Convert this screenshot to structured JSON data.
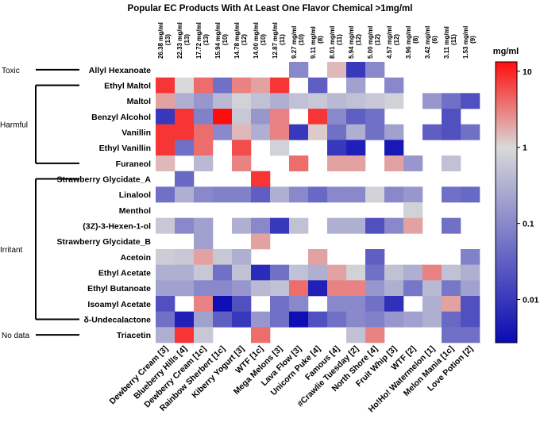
{
  "chart_data": {
    "type": "heatmap",
    "title": "Popular EC Products With At Least One Flavor Chemical >1mg/ml",
    "colorbar_title": "mg/ml",
    "column_totals": [
      [
        "26.38 mg/ml",
        "(13)"
      ],
      [
        "22.33 mg/ml",
        "(13)"
      ],
      [
        "17.72 mg/ml",
        "(13)"
      ],
      [
        "15.94 mg/ml",
        "(10)"
      ],
      [
        "14.78 mg/ml",
        "(12)"
      ],
      [
        "14.00 mg/ml",
        "(10)"
      ],
      [
        "12.87 mg/ml",
        "(11)"
      ],
      [
        "9.27 mg/ml",
        "(10)"
      ],
      [
        "9.11 mg/ml",
        "(8)"
      ],
      [
        "8.01 mg/ml",
        "(11)"
      ],
      [
        "5.94 mg/ml",
        "(12)"
      ],
      [
        "5.00 mg/ml",
        "(12)"
      ],
      [
        "4.57 mg/ml",
        "(12)"
      ],
      [
        "3.96 mg/ml",
        "(8)"
      ],
      [
        "3.42 mg/ml",
        "(6)"
      ],
      [
        "3.11 mg/ml",
        "(11)"
      ],
      [
        "1.53 mg/ml",
        "(9)"
      ]
    ],
    "categories": [
      "Dewberry Cream [3]",
      "Blueberry Hills [4]",
      "Dewberry Cream [1c]",
      "Rainbow Sherbert [1c]",
      "Kiberry Yogurt [3]",
      "WTF [1c]",
      "Mega Melons [3]",
      "Lava Flow [3]",
      "Unicorn Puke [4]",
      "Famous [4]",
      "#Crawlie Tuesday [2]",
      "North Shore [4]",
      "Fruit Whip [3]",
      "WTF [2]",
      "Ho!Ho! Watermelon [1]",
      "Melon Mania [1c]",
      "Love Potion [2]"
    ],
    "rows": [
      "Allyl Hexanoate",
      "Ethyl Maltol",
      "Maltol",
      "Benzyl Alcohol",
      "Vanillin",
      "Ethyl Vanillin",
      "Furaneol",
      "Strawberry Glycidate_A",
      "Linalool",
      "Menthol",
      "(3Z)-3-Hexen-1-ol",
      "Strawberry Glycidate_B",
      "Acetoin",
      "Ethyl Acetate",
      "Ethyl Butanoate",
      "Isoamyl Acetate",
      "δ-Undecalactone",
      "Triacetin"
    ],
    "groups": [
      {
        "label": "Toxic",
        "start": 0,
        "end": 0
      },
      {
        "label": "Harmful",
        "start": 1,
        "end": 6
      },
      {
        "label": "Irritant",
        "start": 7,
        "end": 16
      },
      {
        "label": "No data",
        "start": 17,
        "end": 17
      }
    ],
    "values": [
      [
        null,
        null,
        null,
        null,
        null,
        null,
        null,
        0.1,
        null,
        1.5,
        0.01,
        0.1,
        null,
        null,
        null,
        null,
        null
      ],
      [
        8,
        1,
        4,
        0.05,
        3,
        2,
        8,
        null,
        0.03,
        null,
        0.2,
        null,
        0.1,
        null,
        null,
        null,
        null
      ],
      [
        2,
        0.3,
        0.15,
        0.4,
        0.8,
        0.5,
        0.3,
        0.5,
        0.6,
        0.4,
        0.5,
        0.6,
        0.8,
        null,
        0.15,
        0.05,
        0.02
      ],
      [
        0.01,
        8,
        0.08,
        14,
        0.6,
        0.15,
        3,
        null,
        8,
        0.1,
        0.03,
        0.05,
        null,
        null,
        null,
        0.02,
        null
      ],
      [
        8,
        8,
        4,
        0.1,
        1.5,
        0.3,
        3,
        0.01,
        1.2,
        0.05,
        0.3,
        0.05,
        0.2,
        null,
        0.03,
        0.02,
        0.05
      ],
      [
        8,
        0.05,
        4,
        null,
        6,
        null,
        0.8,
        null,
        null,
        0.01,
        0.005,
        null,
        0.004,
        null,
        null,
        null,
        null
      ],
      [
        1.5,
        null,
        0.4,
        null,
        3,
        null,
        null,
        4,
        null,
        2,
        2,
        null,
        2,
        0.15,
        null,
        0.5,
        null
      ],
      [
        null,
        0.04,
        null,
        null,
        null,
        8,
        null,
        null,
        null,
        null,
        null,
        null,
        null,
        null,
        null,
        null,
        null
      ],
      [
        0.05,
        0.3,
        0.1,
        0.08,
        0.08,
        0.03,
        0.3,
        0.1,
        0.04,
        0.1,
        0.1,
        0.8,
        0.1,
        0.15,
        null,
        0.05,
        0.04
      ],
      [
        null,
        null,
        null,
        null,
        null,
        null,
        null,
        null,
        null,
        null,
        null,
        null,
        null,
        0.8,
        null,
        null,
        null
      ],
      [
        0.6,
        0.1,
        0.2,
        null,
        0.3,
        0.1,
        0.01,
        0.5,
        null,
        0.3,
        0.3,
        0.02,
        0.1,
        2,
        null,
        0.05,
        null
      ],
      [
        null,
        null,
        0.2,
        null,
        null,
        2,
        null,
        null,
        null,
        null,
        null,
        null,
        null,
        null,
        null,
        null,
        null
      ],
      [
        0.7,
        0.6,
        2,
        0.6,
        0.3,
        null,
        null,
        null,
        2,
        null,
        null,
        0.03,
        null,
        null,
        null,
        null,
        0.08
      ],
      [
        0.3,
        0.3,
        0.6,
        0.05,
        0.5,
        0.007,
        0.05,
        0.5,
        0.3,
        2,
        0.8,
        0.05,
        0.5,
        0.3,
        3,
        0.5,
        0.3
      ],
      [
        0.2,
        0.2,
        0.1,
        0.1,
        0.15,
        0.4,
        0.5,
        4,
        0.005,
        3,
        3,
        0.15,
        0.3,
        0.06,
        0.4,
        0.06,
        0.2
      ],
      [
        0.02,
        null,
        3,
        0.003,
        0.02,
        null,
        0.05,
        0.1,
        null,
        0.1,
        0.1,
        0.05,
        0.008,
        null,
        0.3,
        2,
        0.02
      ],
      [
        0.05,
        0.005,
        0.2,
        0.03,
        0.01,
        0.15,
        0.05,
        0.003,
        0.02,
        0.05,
        0.1,
        0.08,
        0.15,
        0.2,
        0.3,
        0.04,
        0.02
      ],
      [
        0.3,
        8,
        0.6,
        null,
        null,
        4,
        null,
        null,
        null,
        null,
        0.5,
        3,
        null,
        null,
        null,
        0.05,
        0.05
      ]
    ],
    "clim": [
      0.0027,
      13.3
    ],
    "log": true,
    "cticks": [
      10,
      1,
      0.1,
      0.01
    ],
    "colormap": [
      "#0a0ab4",
      "#d9d9d9",
      "#ff0d0d"
    ]
  }
}
